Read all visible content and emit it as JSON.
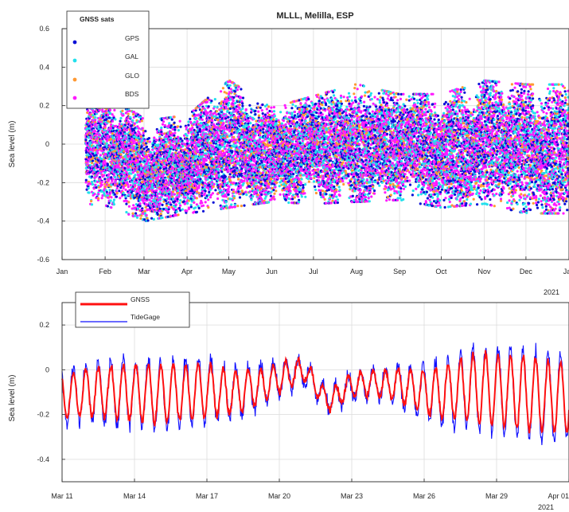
{
  "figure": {
    "colors": {
      "gps": "#0a10d6",
      "gal": "#22e0ec",
      "glo": "#ff9933",
      "bds": "#ff1aff",
      "gnss_line": "#ff1010",
      "tide_line": "#1010ff",
      "grid": "#dcdcdc",
      "axis": "#262626"
    }
  },
  "chart_data": [
    {
      "type": "scatter",
      "title": "MLLL, Melilla, ESP",
      "xlabel": "",
      "ylabel": "Sea level (m)",
      "ylim": [
        -0.6,
        0.6
      ],
      "yticks": [
        -0.6,
        -0.4,
        -0.2,
        0,
        0.2,
        0.4,
        0.6
      ],
      "ytick_labels": [
        "-0.6",
        "-0.4",
        "-0.2",
        "0",
        "0.2",
        "0.4",
        "0.6"
      ],
      "xlim": [
        "2021-01-01",
        "2022-01-01"
      ],
      "xtick_labels": [
        "Jan",
        "Feb",
        "Mar",
        "Apr",
        "May",
        "Jun",
        "Jul",
        "Aug",
        "Sep",
        "Oct",
        "Nov",
        "Dec",
        "Jan"
      ],
      "xaxis_secondary_label": "2021",
      "data_start": "2021-01-18",
      "grid": true,
      "legend": {
        "title": "GNSS sats",
        "placement": "top-left"
      },
      "series": [
        {
          "name": "GPS",
          "color": "#0a10d6"
        },
        {
          "name": "GAL",
          "color": "#22e0ec"
        },
        {
          "name": "GLO",
          "color": "#ff9933"
        },
        {
          "name": "BDS",
          "color": "#ff1aff"
        }
      ],
      "envelope_monthly": {
        "month": [
          "Jan",
          "Feb",
          "Mar",
          "Apr",
          "May",
          "Jun",
          "Jul",
          "Aug",
          "Sep",
          "Oct",
          "Nov",
          "Dec"
        ],
        "max": [
          0.2,
          0.26,
          0.12,
          0.15,
          0.33,
          0.19,
          0.25,
          0.31,
          0.26,
          0.26,
          0.33,
          0.31
        ],
        "min": [
          -0.3,
          -0.32,
          -0.4,
          -0.36,
          -0.33,
          -0.3,
          -0.31,
          -0.3,
          -0.29,
          -0.33,
          -0.31,
          -0.36
        ]
      }
    },
    {
      "type": "line",
      "title": "",
      "xlabel": "",
      "ylabel": "Sea level (m)",
      "ylim": [
        -0.5,
        0.3
      ],
      "yticks": [
        -0.4,
        -0.2,
        0,
        0.2
      ],
      "ytick_labels": [
        "-0.4",
        "-0.2",
        "0",
        "0.2"
      ],
      "xlim": [
        "2021-03-11",
        "2021-04-01"
      ],
      "xtick_labels": [
        "Mar 11",
        "Mar 14",
        "Mar 17",
        "Mar 20",
        "Mar 23",
        "Mar 26",
        "Mar 29",
        "Apr 01"
      ],
      "xaxis_secondary_label": "2021",
      "grid": true,
      "legend": {
        "placement": "top-left"
      },
      "series": [
        {
          "name": "GNSS",
          "color": "#ff1010"
        },
        {
          "name": "TideGage",
          "color": "#1010ff"
        }
      ],
      "tidal_period_hours": 12.42,
      "amplitude_daily": [
        0.12,
        0.13,
        0.14,
        0.15,
        0.16,
        0.15,
        0.14,
        0.12,
        0.1,
        0.08,
        0.06,
        0.05,
        0.06,
        0.07,
        0.09,
        0.12,
        0.15,
        0.18,
        0.19,
        0.2,
        0.19
      ],
      "mean_daily": [
        -0.12,
        -0.1,
        -0.1,
        -0.1,
        -0.11,
        -0.1,
        -0.09,
        -0.1,
        -0.08,
        -0.04,
        0.0,
        -0.14,
        -0.07,
        -0.06,
        -0.07,
        -0.1,
        -0.1,
        -0.08,
        -0.09,
        -0.1,
        -0.12
      ]
    }
  ]
}
